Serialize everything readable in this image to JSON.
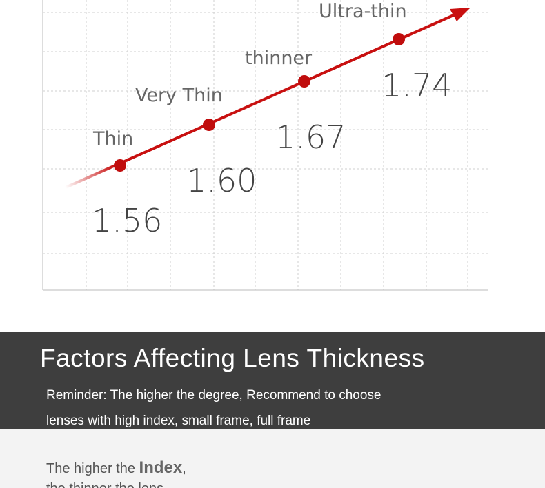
{
  "diagram": {
    "points": [
      {
        "label": "Thin",
        "index": "1.56"
      },
      {
        "label": "Very Thin",
        "index": "1.60"
      },
      {
        "label": "thinner",
        "index": "1.67"
      },
      {
        "label": "Ultra-thin",
        "index": "1.74"
      }
    ]
  },
  "banner": {
    "title": "Factors Affecting Lens Thickness",
    "lines": [
      "Reminder: The higher the degree, Recommend to choose",
      "lenses with high index, small frame, full frame"
    ]
  },
  "footer": {
    "line1": {
      "before": "The higher the ",
      "strong": "Index",
      "after": ","
    },
    "line2": "the thinner the lens"
  }
}
